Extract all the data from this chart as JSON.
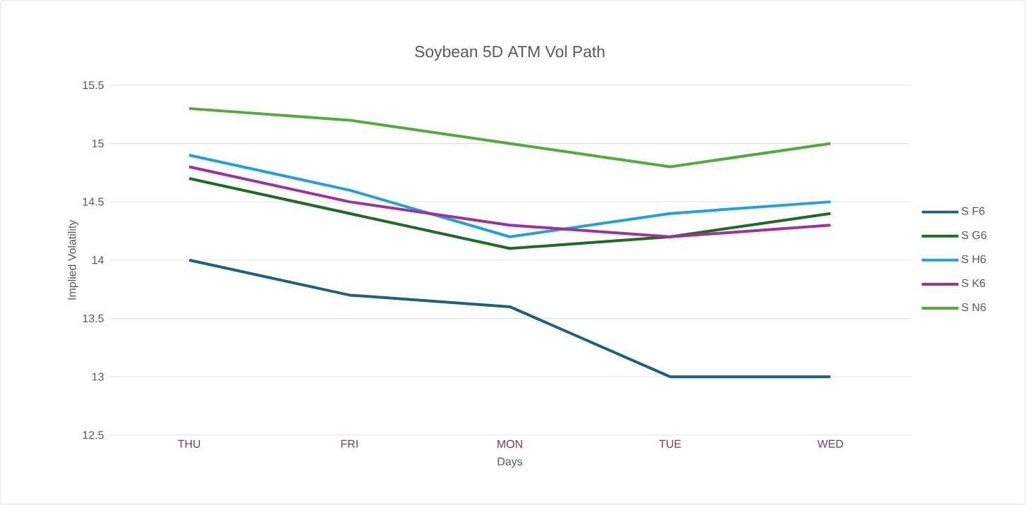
{
  "chart_data": {
    "type": "line",
    "title": "Soybean 5D ATM Vol Path",
    "xlabel": "Days",
    "ylabel": "Implied Volatility",
    "categories": [
      "THU",
      "FRI",
      "MON",
      "TUE",
      "WED"
    ],
    "series": [
      {
        "name": "S F6",
        "color": "#1f5f80",
        "values": [
          14.0,
          13.7,
          13.6,
          13.0,
          13.0
        ]
      },
      {
        "name": "S G6",
        "color": "#1e6b24",
        "values": [
          14.7,
          14.4,
          14.1,
          14.2,
          14.4
        ]
      },
      {
        "name": "S H6",
        "color": "#22a0db",
        "values": [
          14.9,
          14.6,
          14.2,
          14.4,
          14.5
        ]
      },
      {
        "name": "S K6",
        "color": "#a0309a",
        "values": [
          14.8,
          14.5,
          14.3,
          14.2,
          14.3
        ]
      },
      {
        "name": "S N6",
        "color": "#52ab3b",
        "values": [
          15.3,
          15.2,
          15.0,
          14.8,
          15.0
        ]
      }
    ],
    "ylim": [
      12.5,
      15.5
    ],
    "yticks": [
      12.5,
      13,
      13.5,
      14,
      14.5,
      15,
      15.5
    ],
    "grid": "y",
    "legend": "right"
  }
}
